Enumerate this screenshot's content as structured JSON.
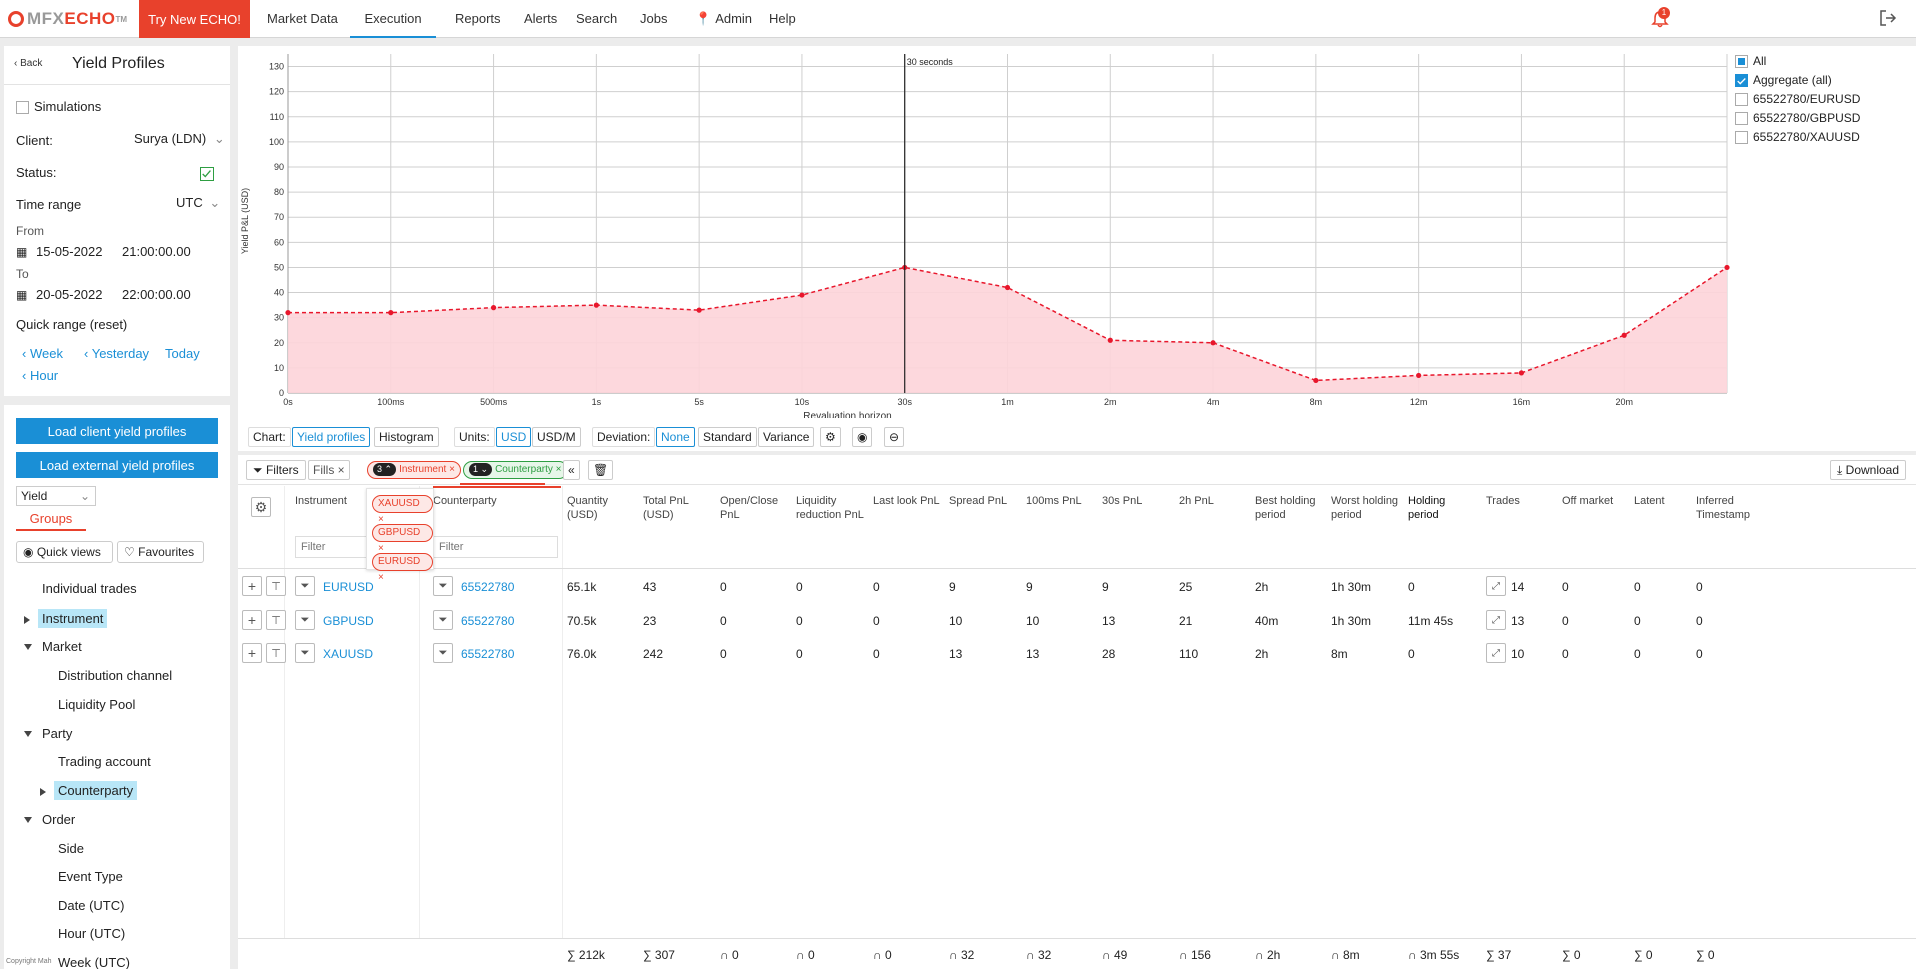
{
  "nav": {
    "logo_mfx": "MFX",
    "logo_echo": "ECHO",
    "logo_tm": "TM",
    "try_button": "Try New ECHO!",
    "items": [
      "Market Data",
      "Execution",
      "Reports",
      "Alerts",
      "Search",
      "Jobs",
      "Admin",
      "Help"
    ],
    "active_item": "Execution",
    "notification_count": "1"
  },
  "filters": {
    "back": "Back",
    "title": "Yield Profiles",
    "simulations": "Simulations",
    "client_label": "Client:",
    "client_value": "Surya (LDN)",
    "status_label": "Status:",
    "time_range_label": "Time range",
    "timezone": "UTC",
    "from_label": "From",
    "from_date": "15-05-2022",
    "from_time": "21:00:00.00",
    "to_label": "To",
    "to_date": "20-05-2022",
    "to_time": "22:00:00.00",
    "quick_range": "Quick range (reset)",
    "quick_links": [
      "Week",
      "Yesterday",
      "Today",
      "Hour"
    ],
    "load_client": "Load client yield profiles",
    "load_external": "Load external yield profiles"
  },
  "tree": {
    "mode_select": "Yield",
    "groups_tab": "Groups",
    "quick_views": "Quick views",
    "favourites": "Favourites",
    "items": [
      {
        "label": "Individual trades",
        "level": 1,
        "toggle": "none",
        "selected": false
      },
      {
        "label": "Instrument",
        "level": 1,
        "toggle": "right",
        "selected": true
      },
      {
        "label": "Market",
        "level": 1,
        "toggle": "down",
        "selected": false
      },
      {
        "label": "Distribution channel",
        "level": 2,
        "toggle": "none",
        "selected": false
      },
      {
        "label": "Liquidity Pool",
        "level": 2,
        "toggle": "none",
        "selected": false
      },
      {
        "label": "Party",
        "level": 1,
        "toggle": "down",
        "selected": false
      },
      {
        "label": "Trading account",
        "level": 2,
        "toggle": "none",
        "selected": false
      },
      {
        "label": "Counterparty",
        "level": 2,
        "toggle": "right",
        "selected": true
      },
      {
        "label": "Order",
        "level": 1,
        "toggle": "down",
        "selected": false
      },
      {
        "label": "Side",
        "level": 2,
        "toggle": "none",
        "selected": false
      },
      {
        "label": "Event Type",
        "level": 2,
        "toggle": "none",
        "selected": false
      },
      {
        "label": "Date (UTC)",
        "level": 2,
        "toggle": "none",
        "selected": false
      },
      {
        "label": "Hour (UTC)",
        "level": 2,
        "toggle": "none",
        "selected": false
      },
      {
        "label": "Week (UTC)",
        "level": 2,
        "toggle": "none",
        "selected": false
      }
    ],
    "footer_text": "Copyright Mah"
  },
  "chart_data": {
    "type": "area",
    "title": "",
    "xlabel": "Revaluation horizon",
    "ylabel": "Yield P&L (USD)",
    "ylim": [
      0,
      135
    ],
    "yticks": [
      0,
      10,
      20,
      30,
      40,
      50,
      60,
      70,
      80,
      90,
      100,
      110,
      120,
      130
    ],
    "categories": [
      "0s",
      "100ms",
      "500ms",
      "1s",
      "5s",
      "10s",
      "30s",
      "1m",
      "2m",
      "4m",
      "8m",
      "12m",
      "16m",
      "20m",
      ""
    ],
    "series": [
      {
        "values": [
          32,
          32,
          34,
          35,
          33,
          39,
          50,
          42,
          21,
          20,
          5,
          7,
          8,
          23,
          50
        ],
        "color": "#e8172c"
      }
    ],
    "annotation": {
      "label": "30 seconds",
      "at": "30s"
    },
    "grid": true,
    "legend": {
      "placement": "top-right",
      "items": [
        {
          "label": "All",
          "state": "partial"
        },
        {
          "label": "Aggregate (all)",
          "state": "checked"
        },
        {
          "label": "65522780/EURUSD",
          "state": "unchecked"
        },
        {
          "label": "65522780/GBPUSD",
          "state": "unchecked"
        },
        {
          "label": "65522780/XAUUSD",
          "state": "unchecked"
        }
      ]
    }
  },
  "chart_controls": {
    "chart_label": "Chart:",
    "chart_options": [
      "Yield profiles",
      "Histogram"
    ],
    "chart_selected": "Yield profiles",
    "units_label": "Units:",
    "units_options": [
      "USD",
      "USD/M"
    ],
    "units_selected": "USD",
    "deviation_label": "Deviation:",
    "deviation_options": [
      "None",
      "Standard",
      "Variance"
    ],
    "deviation_selected": "None"
  },
  "filterbar": {
    "filters_button": "Filters",
    "fills_chip": "Fills",
    "instrument_tag": {
      "count": "3",
      "label": "Instrument"
    },
    "counterparty_tag": {
      "count": "1",
      "label": "Counterparty"
    },
    "instrument_values": [
      "XAUUSD",
      "GBPUSD",
      "EURUSD"
    ],
    "download": "Download"
  },
  "table": {
    "filter_placeholder": "Filter",
    "columns": [
      "Instrument",
      "Counterparty",
      "Quantity (USD)",
      "Total PnL (USD)",
      "Open/Close PnL",
      "Liquidity reduction PnL",
      "Last look PnL",
      "Spread PnL",
      "100ms PnL",
      "30s PnL",
      "2h PnL",
      "Best holding period",
      "Worst holding period",
      "Holding period",
      "Trades",
      "Off market",
      "Latent",
      "Inferred Timestamp"
    ],
    "rows": [
      [
        "EURUSD",
        "65522780",
        "65.1k",
        "43",
        "0",
        "0",
        "0",
        "9",
        "9",
        "9",
        "25",
        "2h",
        "1h 30m",
        "0",
        "14",
        "0",
        "0",
        "0"
      ],
      [
        "GBPUSD",
        "65522780",
        "70.5k",
        "23",
        "0",
        "0",
        "0",
        "10",
        "10",
        "13",
        "21",
        "40m",
        "1h 30m",
        "11m 45s",
        "13",
        "0",
        "0",
        "0"
      ],
      [
        "XAUUSD",
        "65522780",
        "76.0k",
        "242",
        "0",
        "0",
        "0",
        "13",
        "13",
        "28",
        "110",
        "2h",
        "8m",
        "0",
        "10",
        "0",
        "0",
        "0"
      ]
    ],
    "totals": [
      "∑ 212k",
      "∑ 307",
      "∩ 0",
      "∩ 0",
      "∩ 0",
      "∩ 32",
      "∩ 32",
      "∩ 49",
      "∩ 156",
      "∩ 2h",
      "∩ 8m",
      "∩ 3m 55s",
      "∑ 37",
      "∑ 0",
      "∑ 0",
      "∑ 0"
    ]
  }
}
